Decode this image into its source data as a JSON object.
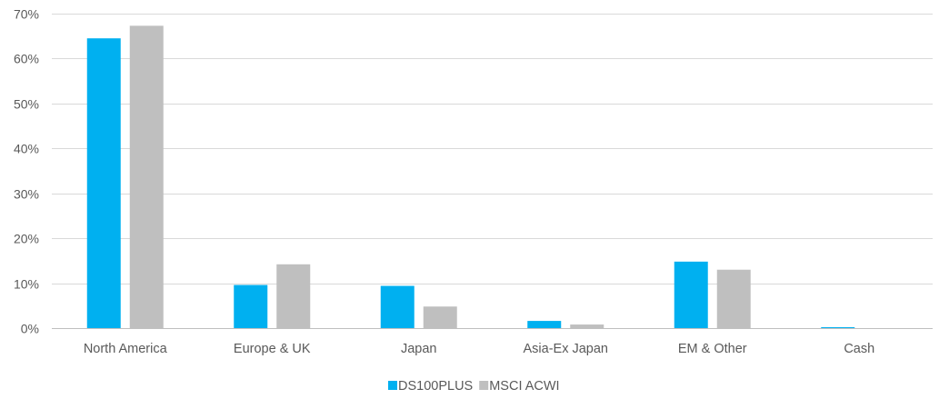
{
  "chart_data": {
    "type": "bar",
    "categories": [
      "North America",
      "Europe & UK",
      "Japan",
      "Asia-Ex Japan",
      "EM & Other",
      "Cash"
    ],
    "series": [
      {
        "name": "DS100PLUS",
        "color": "#00b0f0",
        "values": [
          64.5,
          9.6,
          9.4,
          1.6,
          14.8,
          0.2
        ]
      },
      {
        "name": "MSCI ACWI",
        "color": "#bfbfbf",
        "values": [
          67.3,
          14.2,
          4.8,
          0.8,
          13.0,
          0.0
        ]
      }
    ],
    "ylim": [
      0,
      70
    ],
    "yticks": [
      0,
      10,
      20,
      30,
      40,
      50,
      60,
      70
    ],
    "ytick_labels": [
      "0%",
      "10%",
      "20%",
      "30%",
      "40%",
      "50%",
      "60%",
      "70%"
    ],
    "grid": true,
    "legend": "bottom-center",
    "title": "",
    "xlabel": "",
    "ylabel": ""
  }
}
